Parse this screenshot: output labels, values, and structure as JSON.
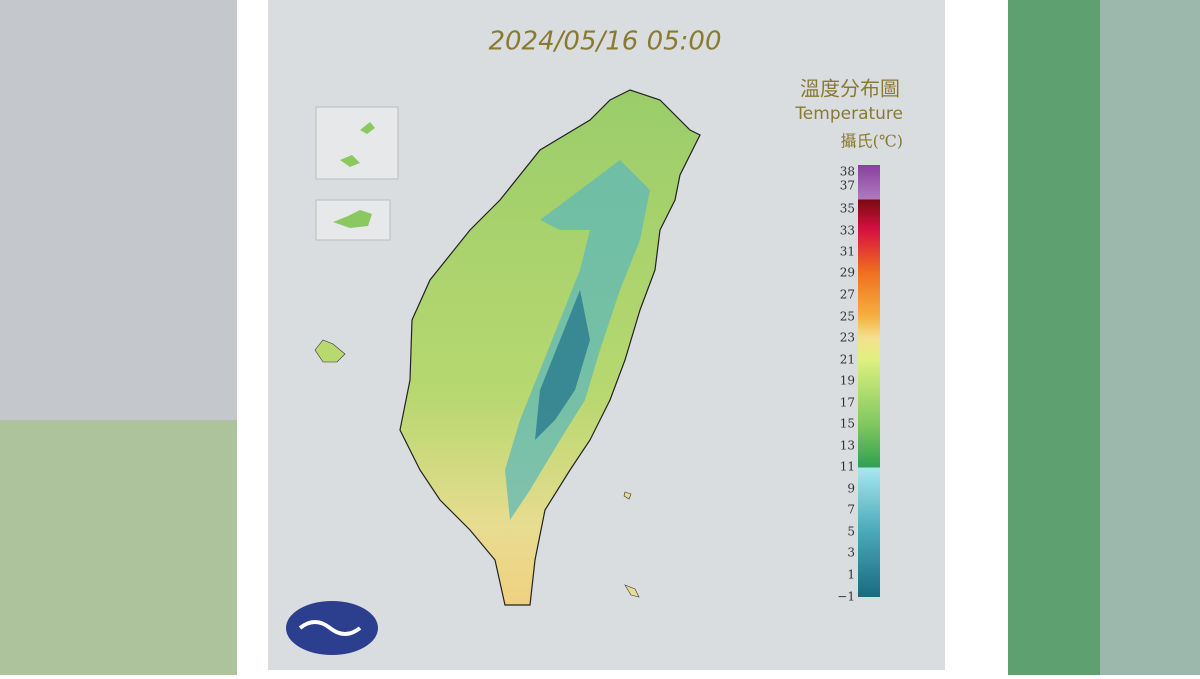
{
  "header": {
    "timestamp": "2024/05/16 05:00"
  },
  "legend": {
    "title_zh": "溫度分布圖",
    "title_en": "Temperature",
    "unit": "攝氏(℃)",
    "ticks": [
      "38",
      "37",
      "35",
      "33",
      "31",
      "29",
      "27",
      "25",
      "23",
      "21",
      "19",
      "17",
      "15",
      "13",
      "11",
      "9",
      "7",
      "5",
      "3",
      "1",
      "−1"
    ]
  }
}
